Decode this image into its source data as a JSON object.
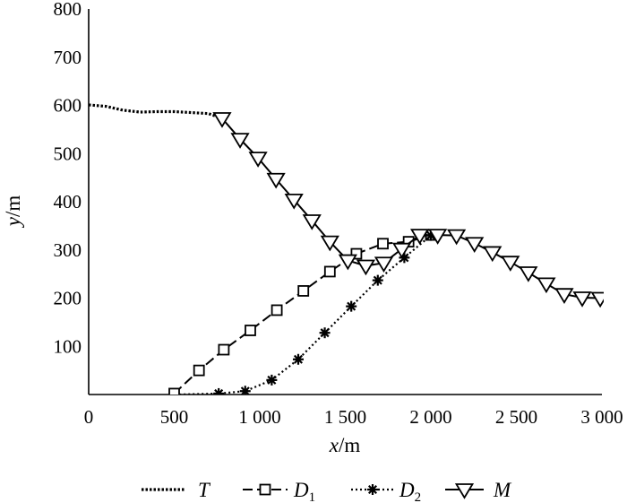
{
  "chart_data": {
    "type": "line",
    "xlabel": {
      "var": "x",
      "unit": "/m"
    },
    "ylabel": {
      "var": "y",
      "unit": "/m"
    },
    "xlim": [
      0,
      3000
    ],
    "ylim": [
      0,
      800
    ],
    "x_ticks": [
      {
        "value": 0,
        "label": "0"
      },
      {
        "value": 500,
        "label": "500"
      },
      {
        "value": 1000,
        "label": "1 000"
      },
      {
        "value": 1500,
        "label": "1 500"
      },
      {
        "value": 2000,
        "label": "2 000"
      },
      {
        "value": 2500,
        "label": "2 500"
      },
      {
        "value": 3000,
        "label": "3 000"
      }
    ],
    "y_ticks": [
      {
        "value": 100,
        "label": "100"
      },
      {
        "value": 200,
        "label": "200"
      },
      {
        "value": 300,
        "label": "300"
      },
      {
        "value": 400,
        "label": "400"
      },
      {
        "value": 500,
        "label": "500"
      },
      {
        "value": 600,
        "label": "600"
      },
      {
        "value": 700,
        "label": "700"
      },
      {
        "value": 800,
        "label": "800"
      }
    ],
    "grid": false,
    "legend_position": "bottom",
    "series": [
      {
        "name": "T",
        "name_sub": "",
        "style": "dotted",
        "marker": "none",
        "color": "#000000",
        "x": [
          0,
          100,
          200,
          300,
          400,
          500,
          600,
          700,
          780
        ],
        "y": [
          601,
          598,
          590,
          586,
          587,
          587,
          585,
          583,
          573
        ]
      },
      {
        "name": "D",
        "name_sub": "1",
        "style": "dashed",
        "marker": "square",
        "color": "#000000",
        "x": [
          500,
          645,
          790,
          945,
          1100,
          1255,
          1410,
          1565,
          1720,
          1870,
          2000
        ],
        "y": [
          2,
          50,
          93,
          133,
          175,
          215,
          255,
          292,
          313,
          317,
          331
        ]
      },
      {
        "name": "D",
        "name_sub": "2",
        "style": "dotted-fine",
        "marker": "asterisk",
        "color": "#000000",
        "x": [
          530,
          760,
          915,
          1070,
          1225,
          1380,
          1535,
          1690,
          1845,
          2000
        ],
        "y": [
          0,
          2,
          7,
          30,
          73,
          128,
          183,
          237,
          284,
          330
        ]
      },
      {
        "name": "M",
        "name_sub": "",
        "style": "solid",
        "marker": "triangle-down",
        "color": "#000000",
        "x": [
          780,
          885,
          990,
          1095,
          1200,
          1305,
          1410,
          1515,
          1620,
          1725,
          1830,
          1935,
          2040,
          2150,
          2255,
          2360,
          2465,
          2570,
          2675,
          2780,
          2885,
          2990
        ],
        "y": [
          573,
          530,
          491,
          447,
          404,
          361,
          317,
          278,
          267,
          273,
          302,
          331,
          331,
          330,
          314,
          295,
          275,
          253,
          230,
          208,
          201,
          200
        ]
      }
    ]
  }
}
